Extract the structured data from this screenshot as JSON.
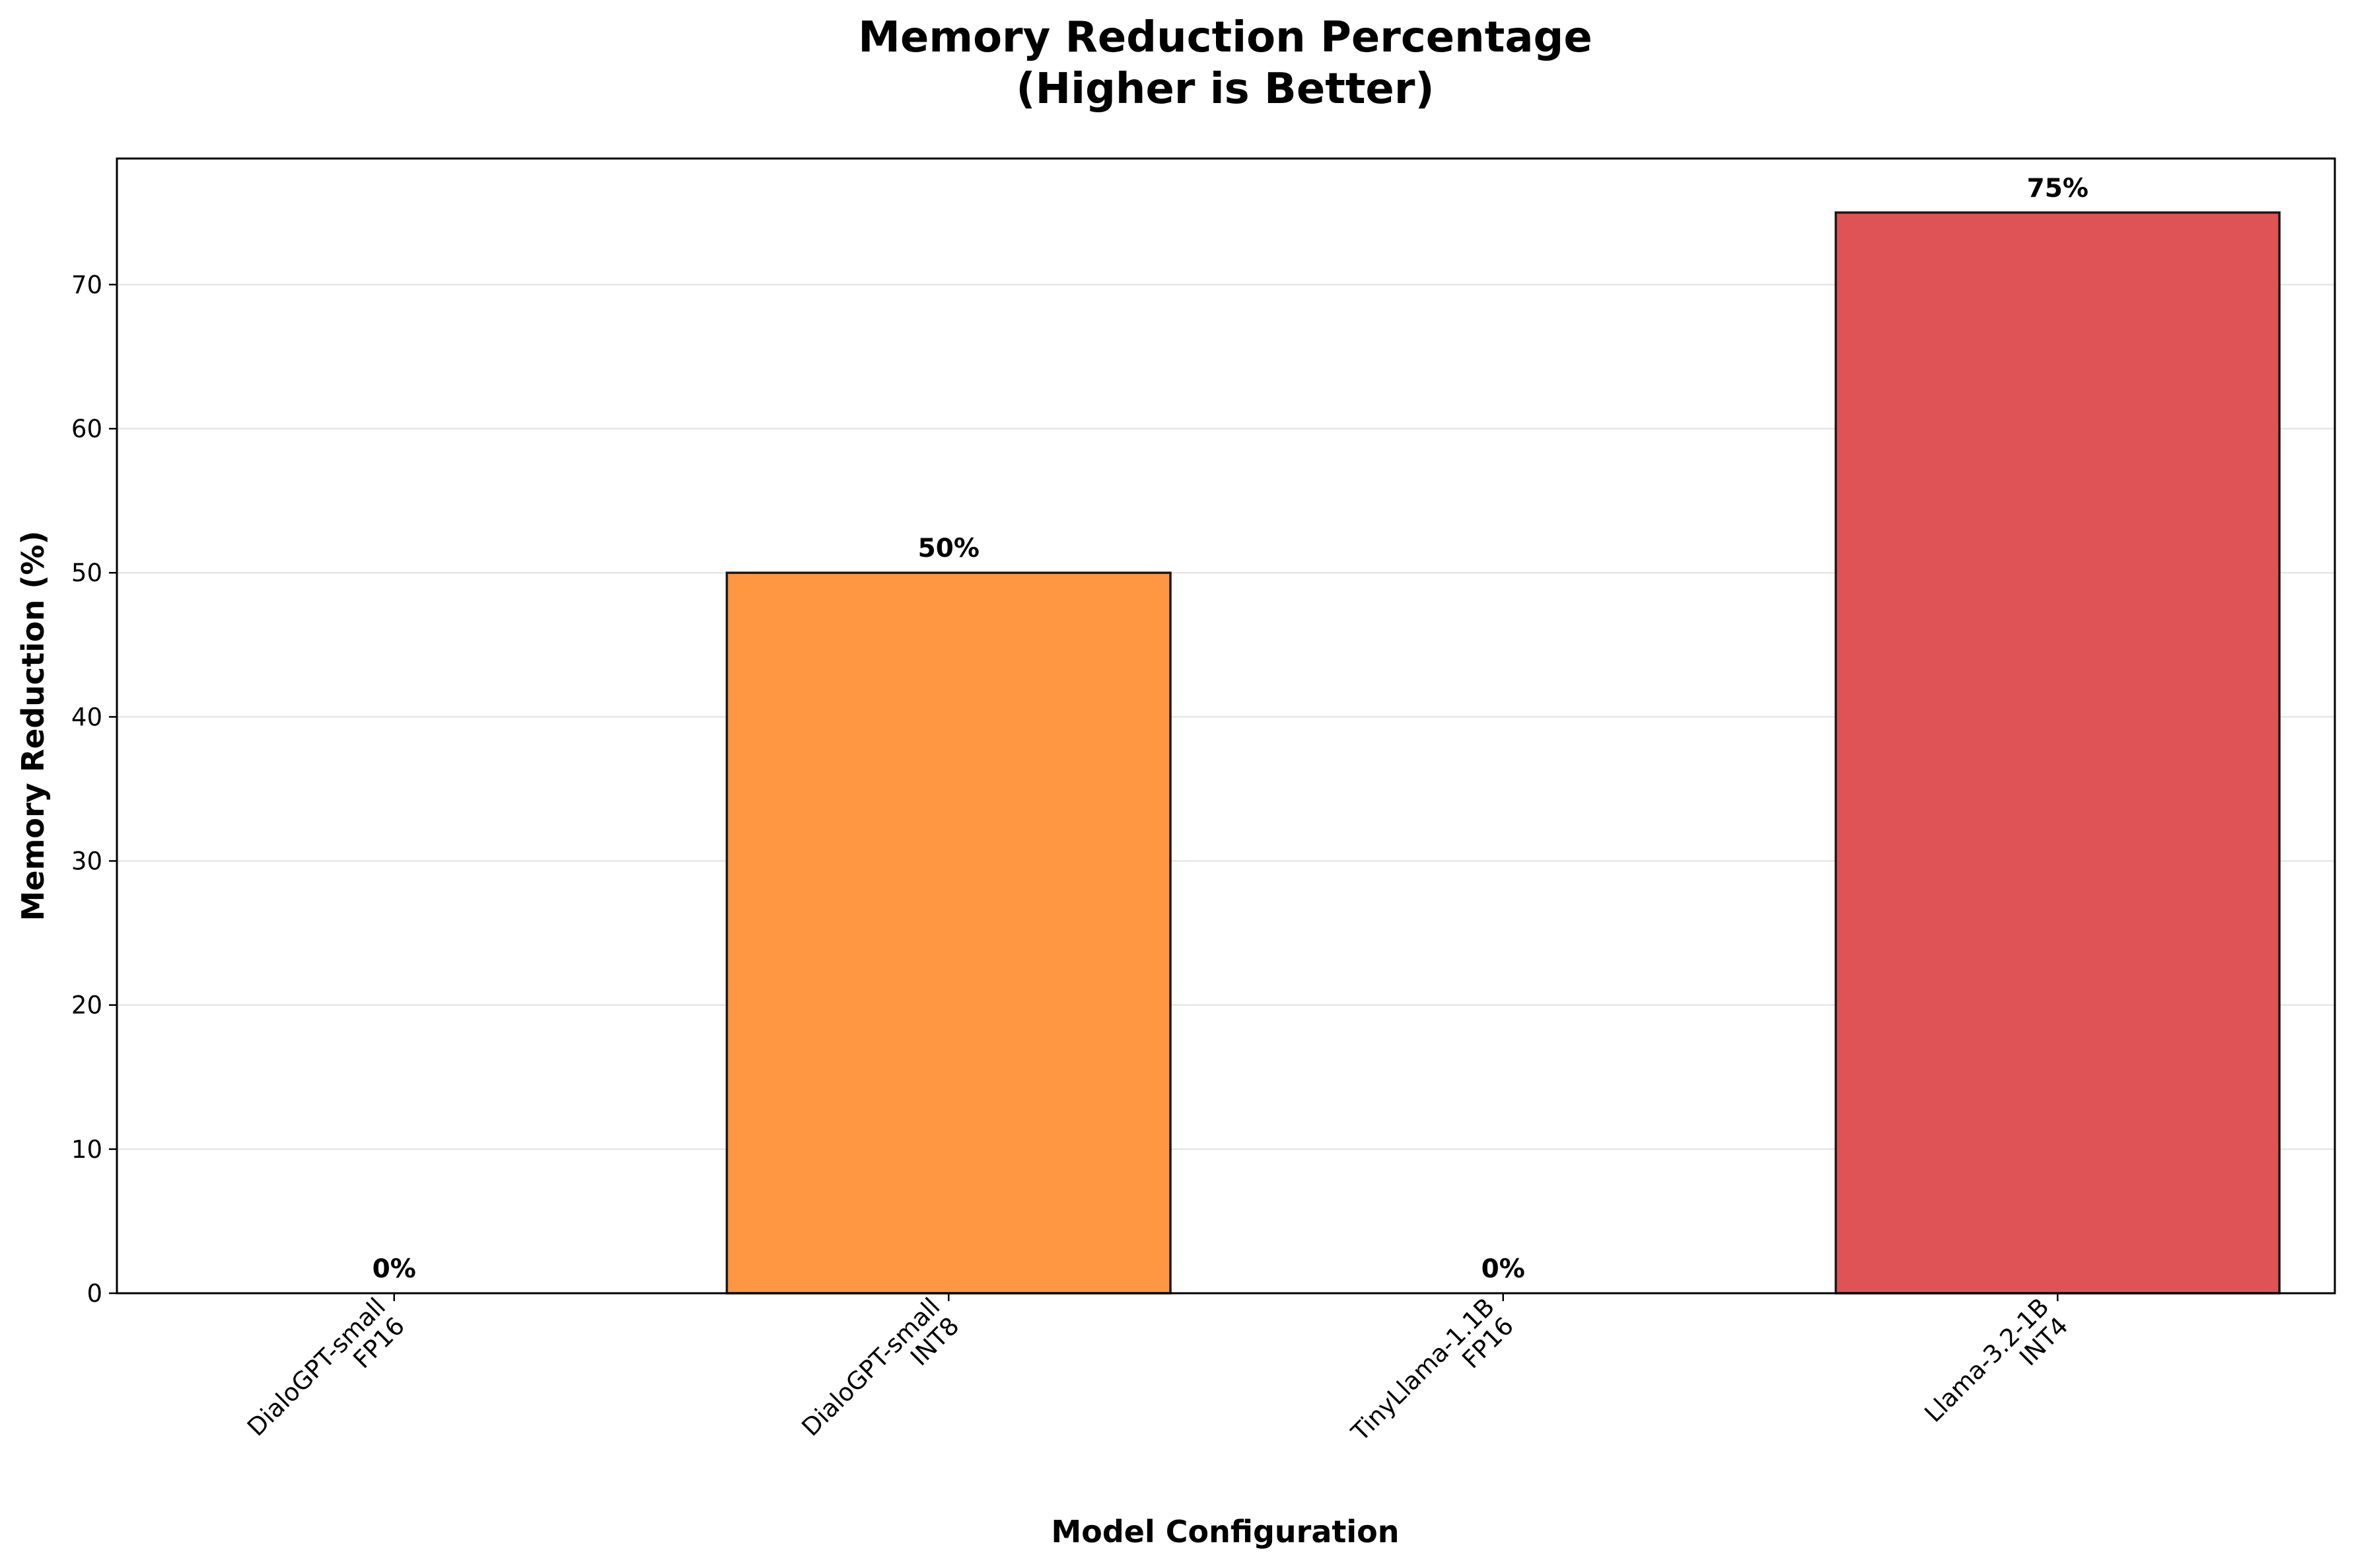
{
  "chart_data": {
    "type": "bar",
    "title_lines": [
      "Memory Reduction Percentage",
      "(Higher is Better)"
    ],
    "xlabel": "Model Configuration",
    "ylabel": "Memory Reduction (%)",
    "categories": [
      [
        "DialoGPT-small",
        "FP16"
      ],
      [
        "DialoGPT-small",
        "INT8"
      ],
      [
        "TinyLlama-1.1B",
        "FP16"
      ],
      [
        "Llama-3.2-1B",
        "INT4"
      ]
    ],
    "values": [
      0,
      50,
      0,
      75
    ],
    "data_labels": [
      "0%",
      "50%",
      "0%",
      "75%"
    ],
    "bar_colors": [
      "#4a7fbf",
      "#ff9642",
      "#3f9e3f",
      "#df5356"
    ],
    "ylim": [
      0,
      78.75
    ],
    "yticks": [
      0,
      10,
      20,
      30,
      40,
      50,
      60,
      70
    ],
    "grid": "y",
    "legend": "none"
  }
}
